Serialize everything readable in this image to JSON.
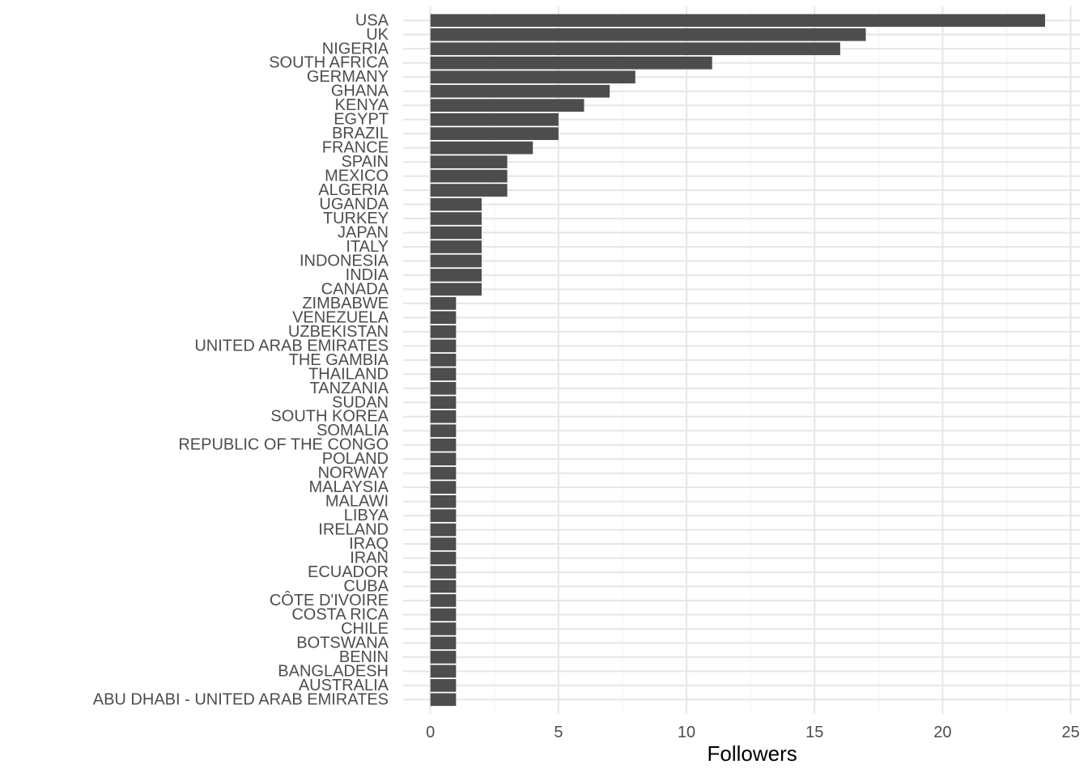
{
  "chart_data": {
    "type": "bar",
    "orientation": "horizontal",
    "title": "",
    "xlabel": "Followers",
    "ylabel": "",
    "xlim": [
      0,
      25
    ],
    "x_ticks": [
      "0",
      "5",
      "10",
      "15",
      "20",
      "25"
    ],
    "grid": true,
    "legend": "none",
    "colors": {
      "bar": "#4d4d4d",
      "grid_major": "#e6e6e6",
      "grid_minor": "#f0f0f0",
      "background": "#ffffff"
    },
    "categories": [
      "USA",
      "UK",
      "NIGERIA",
      "SOUTH AFRICA",
      "GERMANY",
      "GHANA",
      "KENYA",
      "EGYPT",
      "BRAZIL",
      "FRANCE",
      "SPAIN",
      "MEXICO",
      "ALGERIA",
      "UGANDA",
      "TURKEY",
      "JAPAN",
      "ITALY",
      "INDONESIA",
      "INDIA",
      "CANADA",
      "ZIMBABWE",
      "VENEZUELA",
      "UZBEKISTAN",
      "UNITED ARAB EMIRATES",
      "THE GAMBIA",
      "THAILAND",
      "TANZANIA",
      "SUDAN",
      "SOUTH KOREA",
      "SOMALIA",
      "REPUBLIC OF THE CONGO",
      "POLAND",
      "NORWAY",
      "MALAYSIA",
      "MALAWI",
      "LIBYA",
      "IRELAND",
      "IRAQ",
      "IRAN",
      "ECUADOR",
      "CUBA",
      "CÔTE D'IVOIRE",
      "COSTA RICA",
      "CHILE",
      "BOTSWANA",
      "BENIN",
      "BANGLADESH",
      "AUSTRALIA",
      "ABU DHABI - UNITED ARAB EMIRATES"
    ],
    "values": [
      24,
      17,
      16,
      11,
      8,
      7,
      6,
      5,
      5,
      4,
      3,
      3,
      3,
      2,
      2,
      2,
      2,
      2,
      2,
      2,
      1,
      1,
      1,
      1,
      1,
      1,
      1,
      1,
      1,
      1,
      1,
      1,
      1,
      1,
      1,
      1,
      1,
      1,
      1,
      1,
      1,
      1,
      1,
      1,
      1,
      1,
      1,
      1,
      1
    ]
  }
}
